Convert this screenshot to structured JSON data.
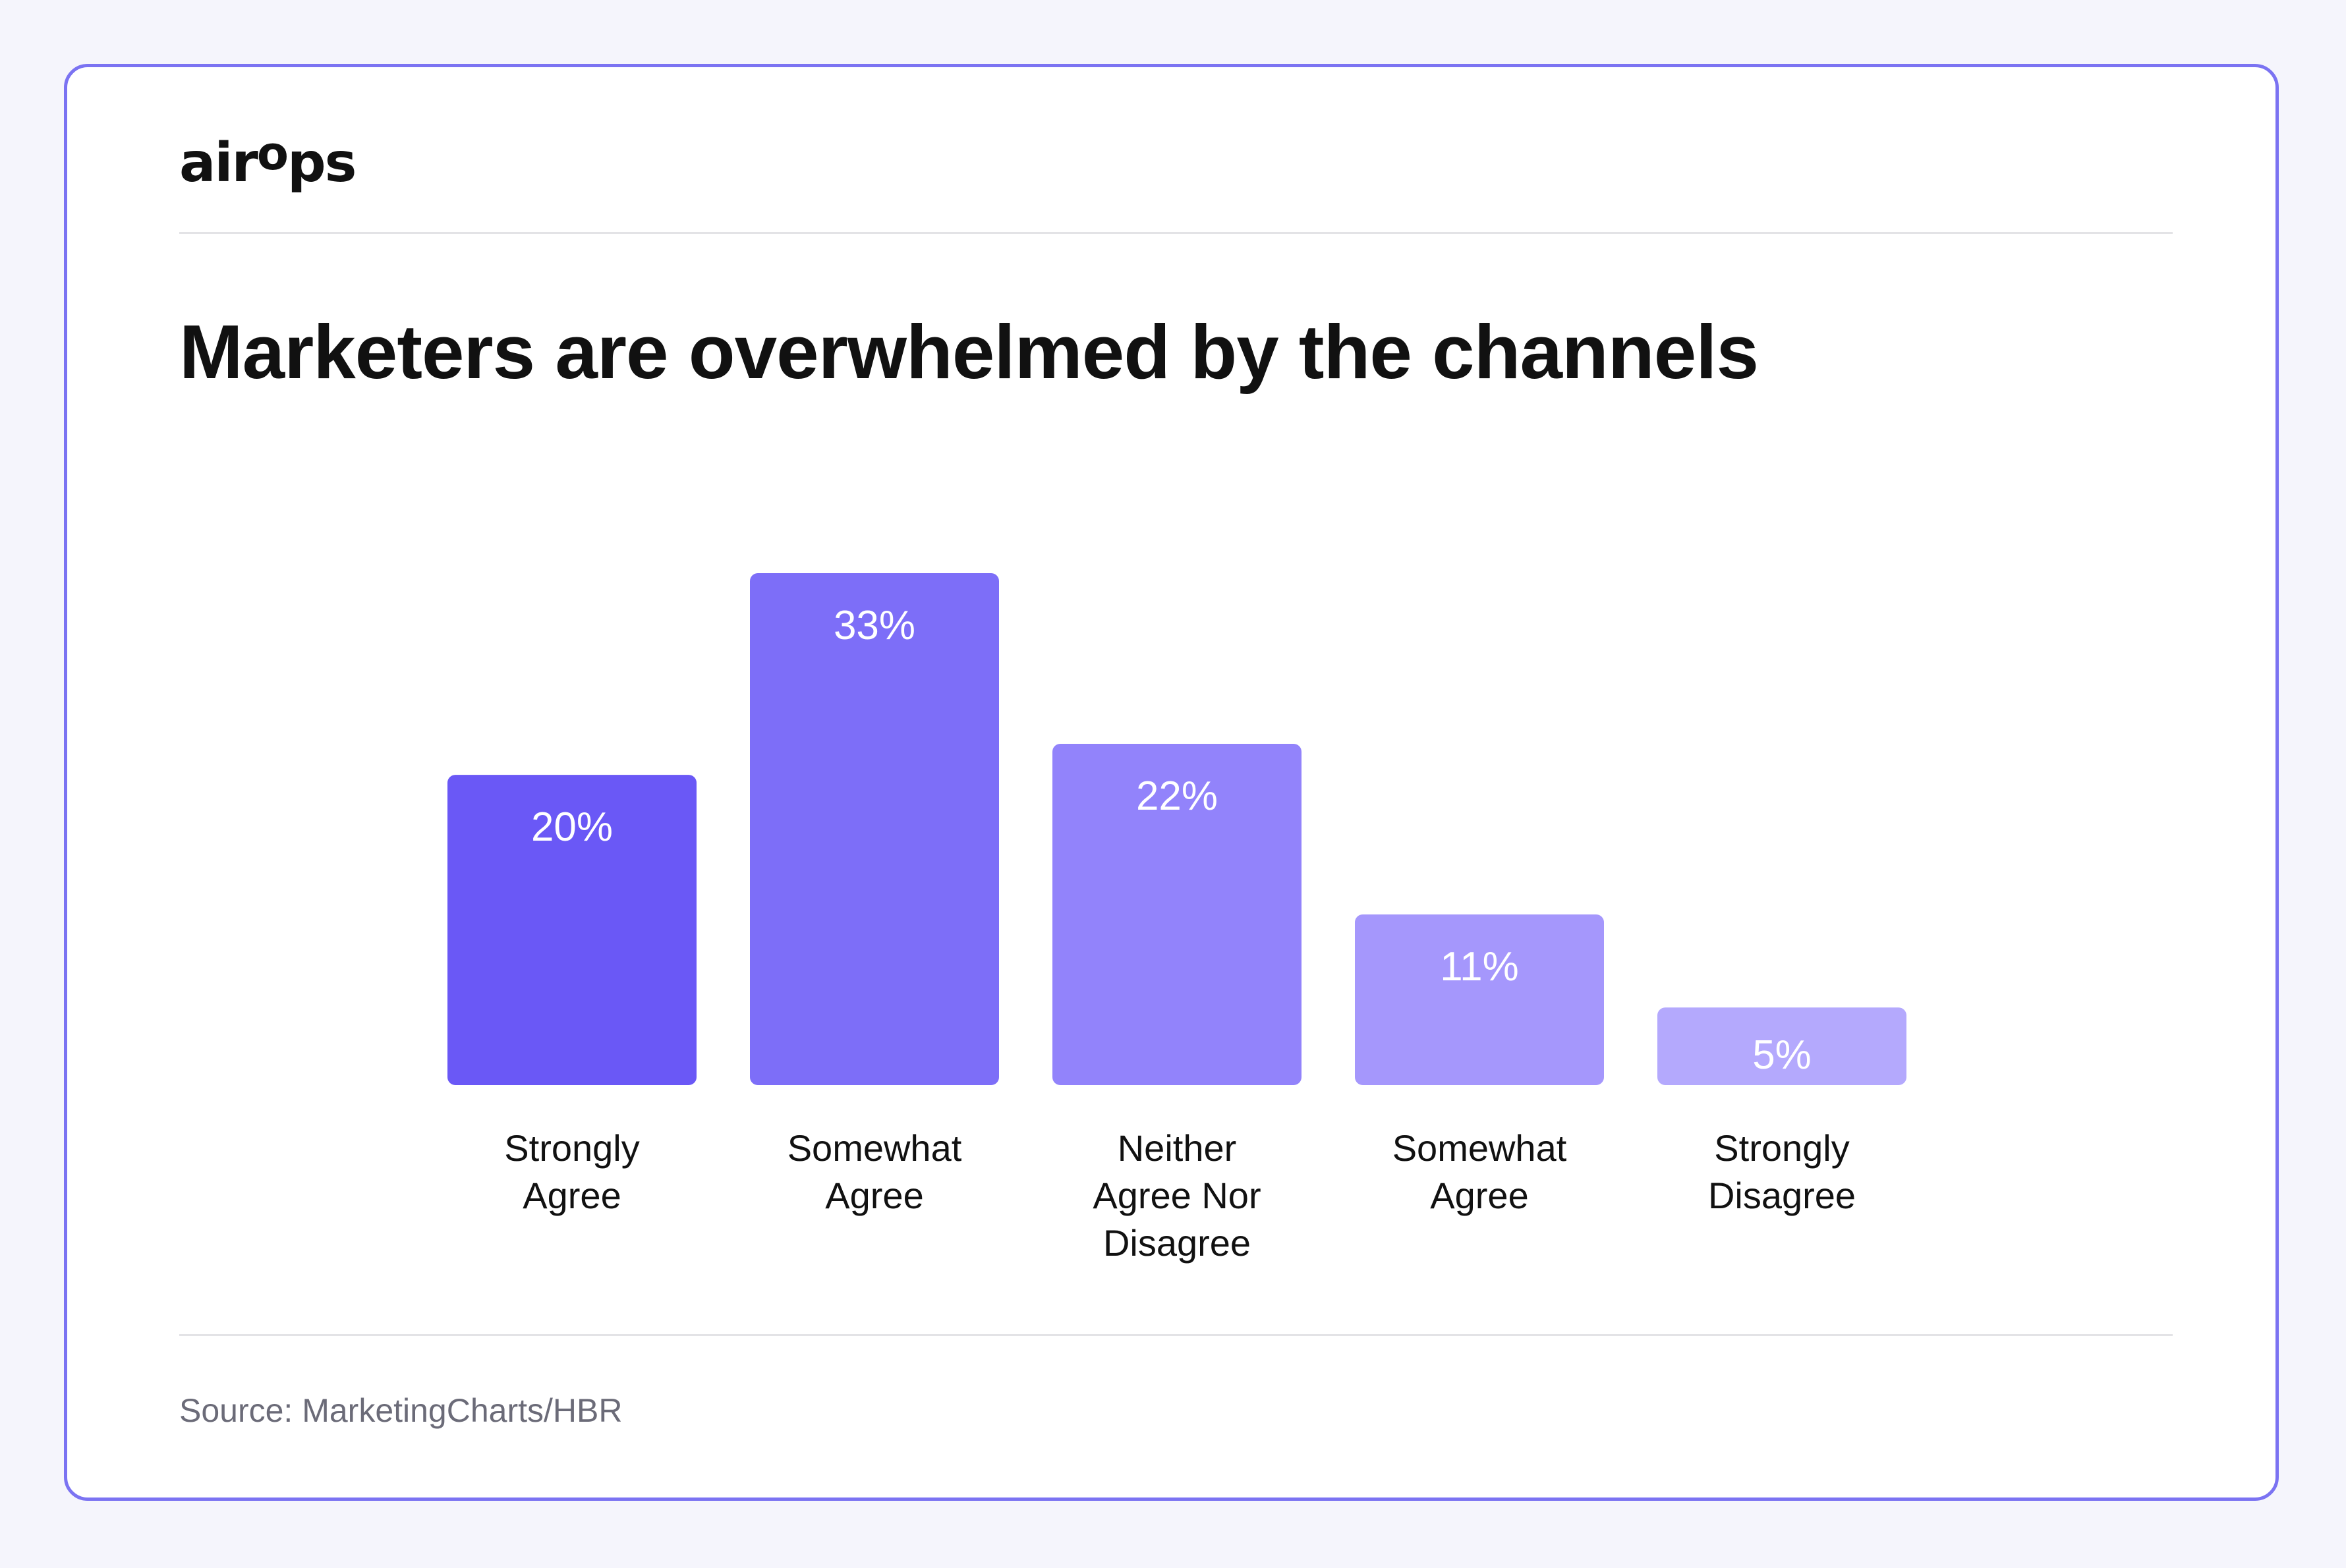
{
  "brand": {
    "logo_pre": "air",
    "logo_sup": "o",
    "logo_post": "ps"
  },
  "title": "Marketers are overwhelmed by the channels",
  "source": "Source: MarketingCharts/HBR",
  "colors": {
    "frame": "#7b73f2",
    "background": "#f5f5fc",
    "bar_colors": [
      "#6a58f6",
      "#7d6ef8",
      "#9283fb",
      "#a597fc",
      "#b4a9fd"
    ]
  },
  "chart_data": {
    "type": "bar",
    "categories": [
      [
        "Strongly",
        "Agree"
      ],
      [
        "Somewhat",
        "Agree"
      ],
      [
        "Neither",
        "Agree Nor",
        "Disagree"
      ],
      [
        "Somewhat",
        "Agree"
      ],
      [
        "Strongly",
        "Disagree"
      ]
    ],
    "values": [
      20,
      33,
      22,
      11,
      5
    ],
    "value_labels": [
      "20%",
      "33%",
      "22%",
      "11%",
      "5%"
    ],
    "unit": "%",
    "ylim": [
      0,
      33
    ],
    "grid": false,
    "legend": "none"
  }
}
